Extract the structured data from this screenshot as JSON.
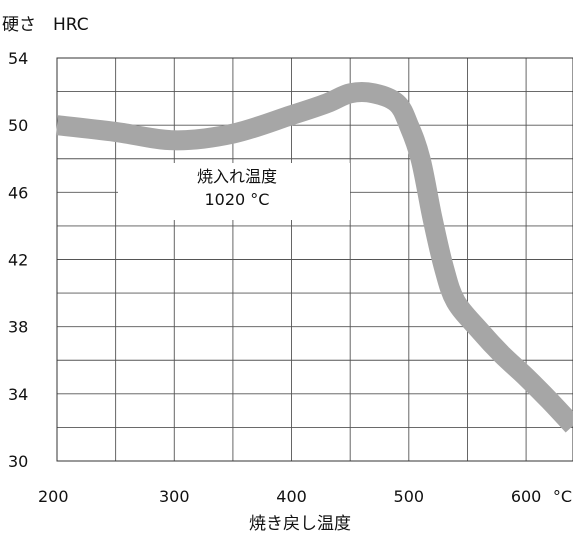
{
  "chart_data": {
    "type": "line",
    "ylabel": "硬さ　HRC",
    "xlabel": "焼き戻し温度",
    "x_unit": "°C",
    "xlim": [
      200,
      640
    ],
    "ylim": [
      30,
      54
    ],
    "x_ticks": [
      "200",
      "300",
      "400",
      "500",
      "600"
    ],
    "y_ticks": [
      "54",
      "50",
      "46",
      "42",
      "38",
      "34",
      "30"
    ],
    "grid": true,
    "annotation": {
      "line1": "焼入れ温度",
      "line2": "1020 °C"
    },
    "series": [
      {
        "color": "#a6a6a6",
        "x": [
          200,
          250,
          300,
          350,
          400,
          430,
          450,
          470,
          490,
          500,
          510,
          520,
          530,
          540,
          560,
          580,
          600,
          620,
          640
        ],
        "y": [
          50.0,
          49.6,
          49.1,
          49.5,
          50.6,
          51.3,
          51.9,
          51.9,
          51.3,
          50.0,
          48.0,
          44.5,
          41.5,
          39.5,
          37.8,
          36.3,
          35.0,
          33.6,
          32.1
        ]
      }
    ]
  }
}
